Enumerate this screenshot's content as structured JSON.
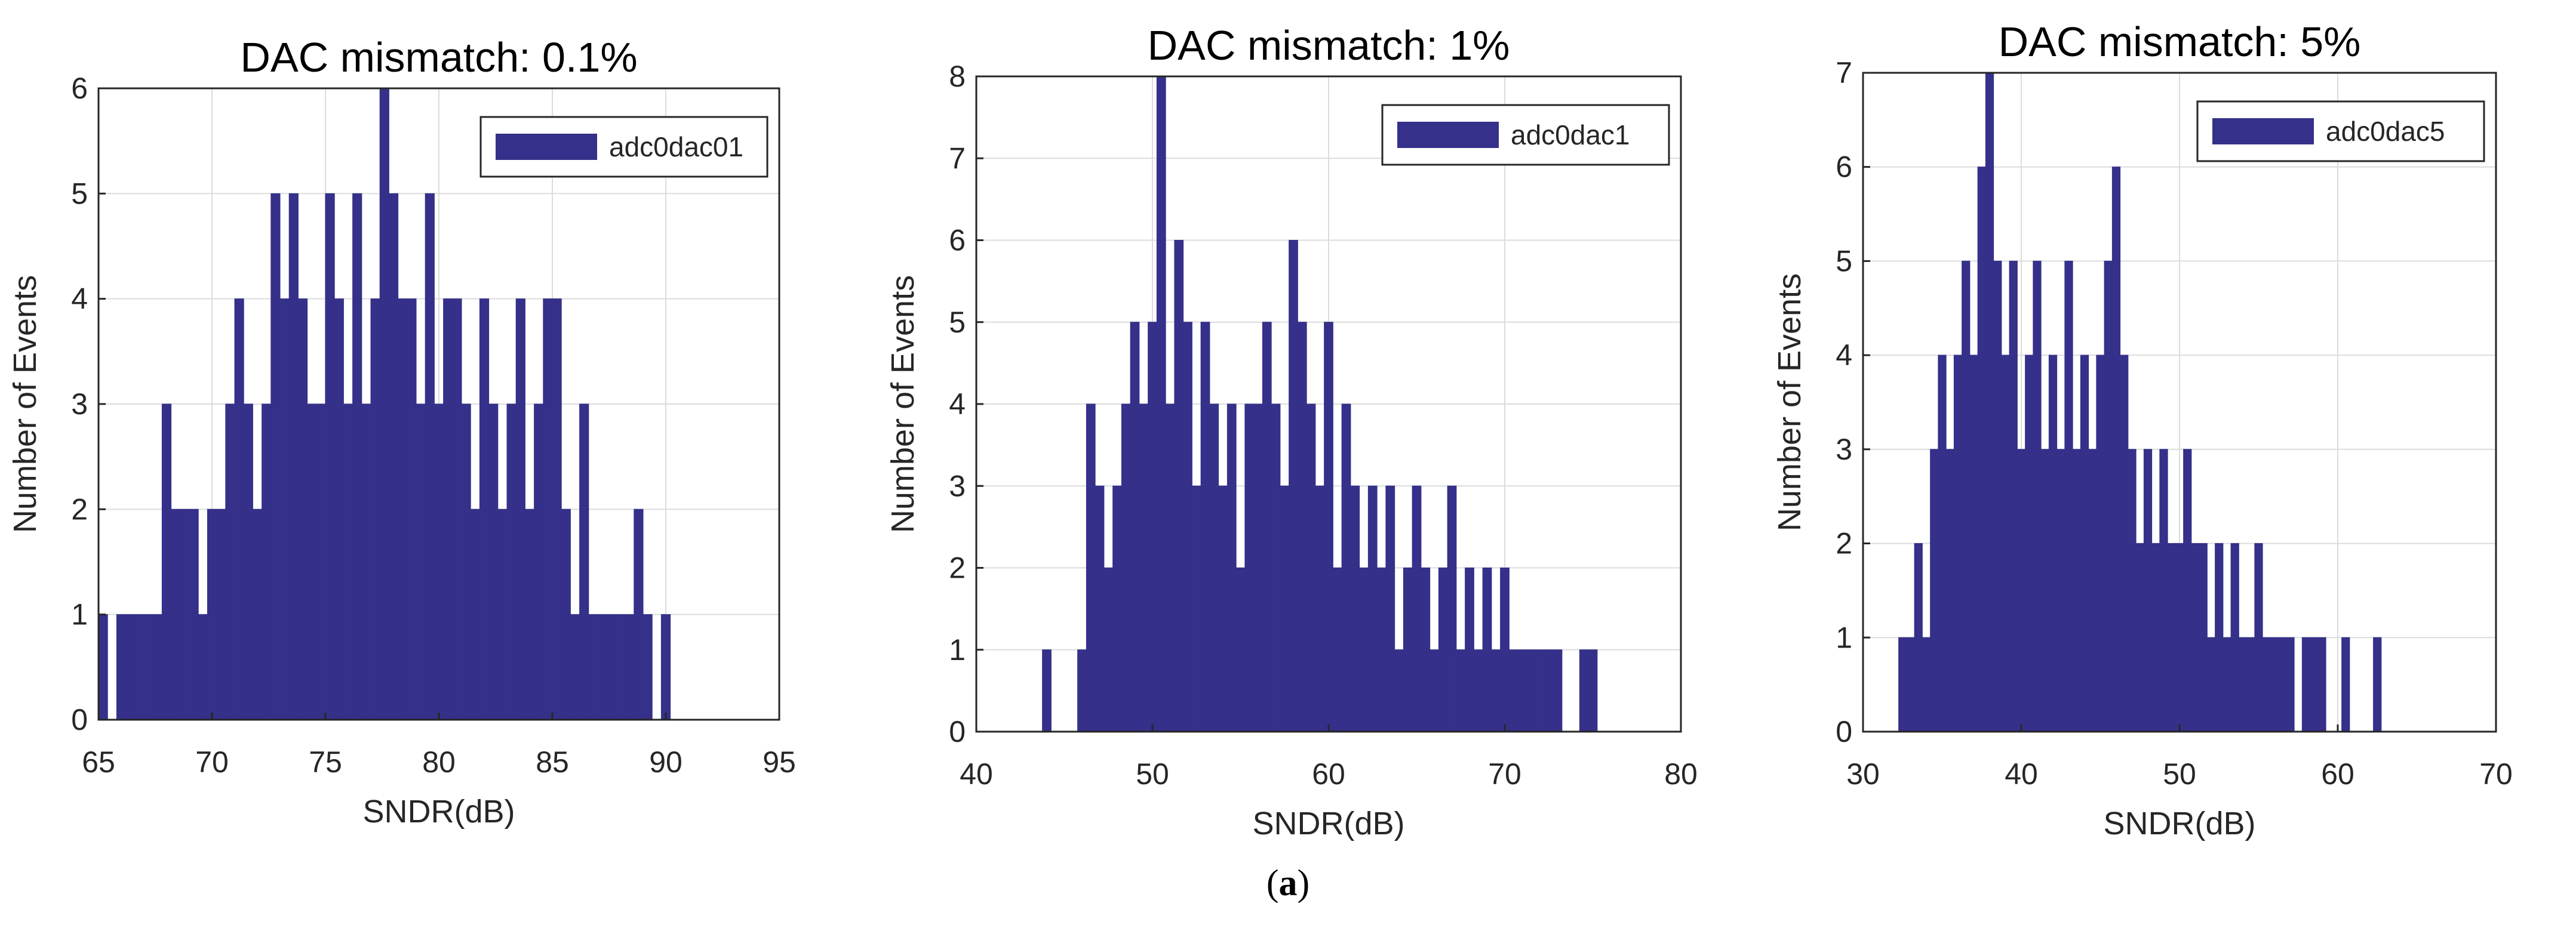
{
  "figure": {
    "caption_open": "(",
    "caption_letter": "a",
    "caption_close": ")"
  },
  "chart_data": [
    {
      "type": "bar",
      "title": "DAC mismatch: 0.1%",
      "xlabel": "SNDR(dB)",
      "ylabel": "Number of Events",
      "xlim": [
        65,
        95
      ],
      "ylim": [
        0,
        6
      ],
      "xticks": [
        65,
        70,
        75,
        80,
        85,
        90,
        95
      ],
      "yticks": [
        0,
        1,
        2,
        3,
        4,
        5,
        6
      ],
      "grid": true,
      "legend": {
        "position": "top-right",
        "entries": [
          "adc0dac01"
        ]
      },
      "bar_color": "#353089",
      "series": [
        {
          "name": "adc0dac01",
          "bin_centers": [
            65.2,
            65.6,
            66.0,
            66.4,
            66.8,
            67.2,
            67.6,
            68.0,
            68.4,
            68.8,
            69.2,
            69.6,
            70.0,
            70.4,
            70.8,
            71.2,
            71.6,
            72.0,
            72.4,
            72.8,
            73.2,
            73.6,
            74.0,
            74.4,
            74.8,
            75.2,
            75.6,
            76.0,
            76.4,
            76.8,
            77.2,
            77.6,
            78.0,
            78.4,
            78.8,
            79.2,
            79.6,
            80.0,
            80.4,
            80.8,
            81.2,
            81.6,
            82.0,
            82.4,
            82.8,
            83.2,
            83.6,
            84.0,
            84.4,
            84.8,
            85.2,
            85.6,
            86.0,
            86.4,
            86.8,
            87.2,
            87.6,
            88.0,
            88.4,
            88.8,
            89.2,
            89.6,
            90.0
          ],
          "counts": [
            1,
            0,
            1,
            1,
            1,
            1,
            1,
            3,
            2,
            2,
            2,
            1,
            2,
            2,
            3,
            4,
            3,
            2,
            3,
            5,
            4,
            5,
            4,
            3,
            3,
            5,
            4,
            3,
            5,
            3,
            4,
            6,
            5,
            4,
            4,
            3,
            5,
            3,
            4,
            4,
            3,
            2,
            4,
            3,
            2,
            3,
            4,
            2,
            3,
            4,
            4,
            2,
            1,
            3,
            1,
            1,
            1,
            1,
            1,
            2,
            1,
            0,
            1
          ]
        }
      ]
    },
    {
      "type": "bar",
      "title": "DAC mismatch: 1%",
      "xlabel": "SNDR(dB)",
      "ylabel": "Number of Events",
      "xlim": [
        40,
        80
      ],
      "ylim": [
        0,
        8
      ],
      "xticks": [
        40,
        50,
        60,
        70,
        80
      ],
      "yticks": [
        0,
        1,
        2,
        3,
        4,
        5,
        6,
        7,
        8
      ],
      "grid": true,
      "legend": {
        "position": "top-right",
        "entries": [
          "adc0dac1"
        ]
      },
      "bar_color": "#353089",
      "series": [
        {
          "name": "adc0dac1",
          "bin_centers": [
            44.0,
            46.0,
            46.5,
            47.0,
            47.5,
            48.0,
            48.5,
            49.0,
            49.5,
            50.0,
            50.5,
            51.0,
            51.5,
            52.0,
            52.5,
            53.0,
            53.5,
            54.0,
            54.5,
            55.0,
            55.5,
            56.0,
            56.5,
            57.0,
            57.5,
            58.0,
            58.5,
            59.0,
            59.5,
            60.0,
            60.5,
            61.0,
            61.5,
            62.0,
            62.5,
            63.0,
            63.5,
            64.0,
            64.5,
            65.0,
            65.5,
            66.0,
            66.5,
            67.0,
            67.5,
            68.0,
            68.5,
            69.0,
            69.5,
            70.0,
            70.5,
            71.0,
            71.5,
            72.0,
            72.5,
            73.0,
            74.5,
            75.0
          ],
          "counts": [
            1,
            1,
            4,
            3,
            2,
            3,
            4,
            5,
            4,
            5,
            8,
            4,
            6,
            5,
            3,
            5,
            4,
            3,
            4,
            2,
            4,
            4,
            5,
            4,
            3,
            6,
            5,
            4,
            3,
            5,
            2,
            4,
            3,
            2,
            3,
            2,
            3,
            1,
            2,
            3,
            2,
            1,
            2,
            3,
            1,
            2,
            1,
            2,
            1,
            2,
            1,
            1,
            1,
            1,
            1,
            1,
            1,
            1
          ]
        }
      ]
    },
    {
      "type": "bar",
      "title": "DAC mismatch: 5%",
      "xlabel": "SNDR(dB)",
      "ylabel": "Number of Events",
      "xlim": [
        30,
        70
      ],
      "ylim": [
        0,
        7
      ],
      "xticks": [
        30,
        40,
        50,
        60,
        70
      ],
      "yticks": [
        0,
        1,
        2,
        3,
        4,
        5,
        6,
        7
      ],
      "grid": true,
      "legend": {
        "position": "top-right",
        "entries": [
          "adc0dac5"
        ]
      },
      "bar_color": "#353089",
      "series": [
        {
          "name": "adc0dac5",
          "bin_centers": [
            32.5,
            33.0,
            33.5,
            34.0,
            34.5,
            35.0,
            35.5,
            36.0,
            36.5,
            37.0,
            37.5,
            38.0,
            38.5,
            39.0,
            39.5,
            40.0,
            40.5,
            41.0,
            41.5,
            42.0,
            42.5,
            43.0,
            43.5,
            44.0,
            44.5,
            45.0,
            45.5,
            46.0,
            46.5,
            47.0,
            47.5,
            48.0,
            48.5,
            49.0,
            49.5,
            50.0,
            50.5,
            51.0,
            51.5,
            52.0,
            52.5,
            53.0,
            53.5,
            54.0,
            54.5,
            55.0,
            55.5,
            56.0,
            56.5,
            57.0,
            58.0,
            58.5,
            59.0,
            60.5,
            62.5
          ],
          "counts": [
            1,
            1,
            2,
            1,
            3,
            4,
            3,
            4,
            5,
            4,
            6,
            7,
            5,
            4,
            5,
            3,
            4,
            5,
            3,
            4,
            3,
            5,
            3,
            4,
            3,
            4,
            5,
            6,
            4,
            3,
            2,
            3,
            2,
            3,
            2,
            2,
            3,
            2,
            2,
            1,
            2,
            1,
            2,
            1,
            1,
            2,
            1,
            1,
            1,
            1,
            1,
            1,
            1,
            1,
            1
          ]
        }
      ]
    }
  ]
}
